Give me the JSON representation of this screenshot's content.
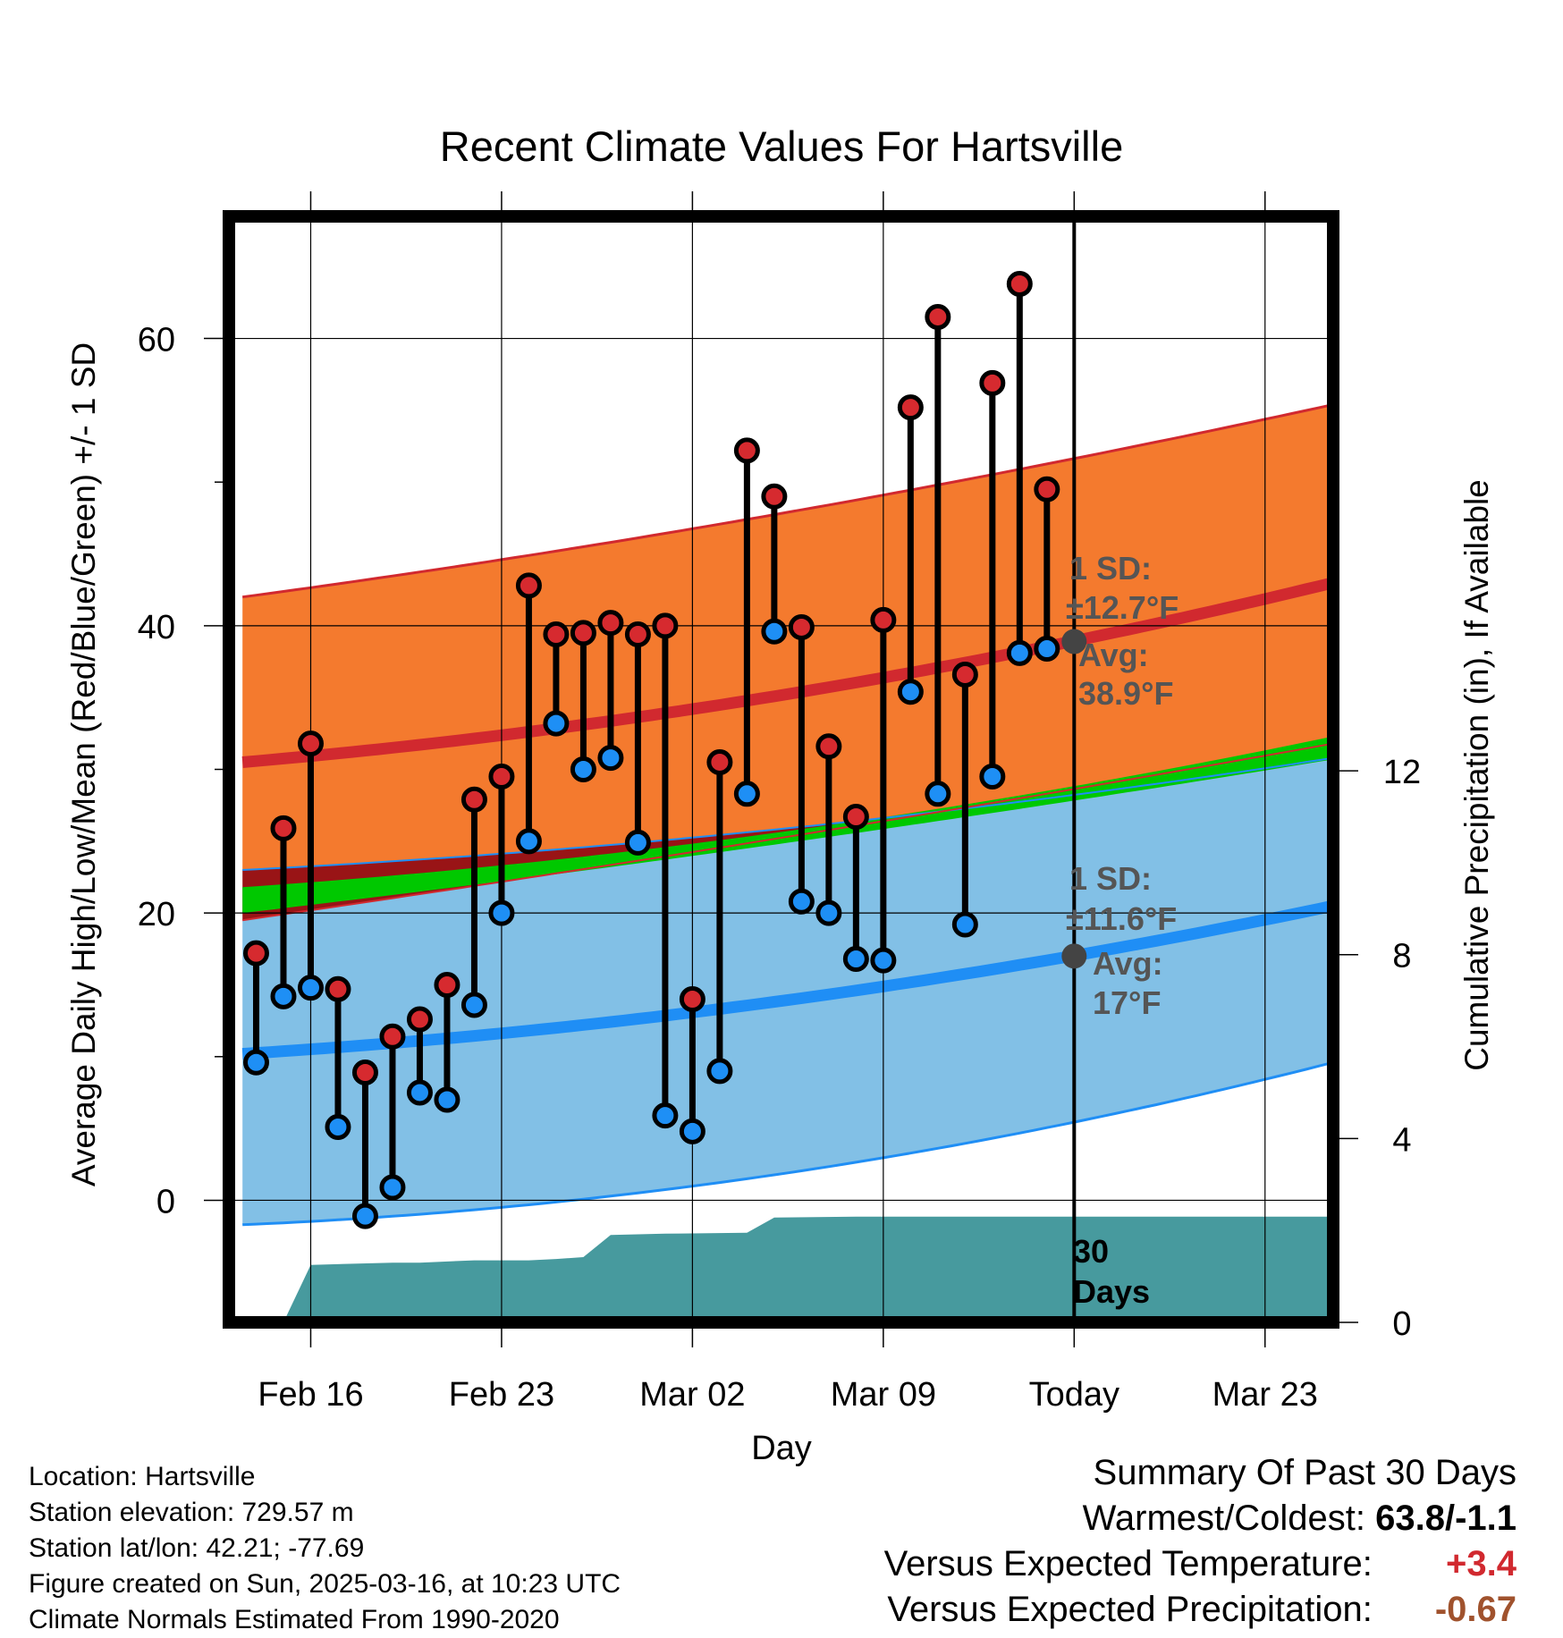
{
  "chart_data": {
    "type": "line",
    "title": "Recent Climate Values For Hartsville",
    "xlabel": "Day",
    "ylabel_left": "Average Daily High/Low/Mean (Red/Blue/Green) +/- 1 SD",
    "ylabel_right": "Cumulative Precipitation (in), If Available",
    "x_ticks": [
      {
        "day": 2,
        "label": "Feb 16"
      },
      {
        "day": 9,
        "label": "Feb 23"
      },
      {
        "day": 16,
        "label": "Mar 02"
      },
      {
        "day": 23,
        "label": "Mar 09"
      },
      {
        "day": 30,
        "label": "Today"
      },
      {
        "day": 37,
        "label": "Mar 23"
      }
    ],
    "xlim": [
      -1,
      39.5
    ],
    "ylim": [
      -8.5,
      68.5
    ],
    "y_ticks": [
      0,
      20,
      40,
      60
    ],
    "y_minor_ticks": [
      10,
      30,
      50
    ],
    "y2_ticks": [
      0,
      4,
      8,
      12
    ],
    "y2_per_degree": 0.3125,
    "grid": true,
    "today_day": 30,
    "observed": {
      "days": [
        0,
        1,
        2,
        3,
        4,
        5,
        6,
        7,
        8,
        9,
        10,
        11,
        12,
        13,
        14,
        15,
        16,
        17,
        18,
        19,
        20,
        21,
        22,
        23,
        24,
        25,
        26,
        27,
        28,
        29
      ],
      "highs": [
        17.2,
        25.9,
        31.8,
        14.7,
        8.9,
        11.4,
        12.6,
        15.0,
        27.9,
        29.5,
        42.8,
        39.4,
        39.5,
        40.2,
        39.4,
        40.0,
        14.0,
        30.5,
        52.2,
        49.0,
        39.9,
        31.6,
        26.7,
        40.4,
        55.2,
        61.5,
        36.6,
        56.9,
        63.8,
        49.5
      ],
      "lows": [
        9.6,
        14.2,
        14.8,
        5.1,
        -1.1,
        0.9,
        7.5,
        7.0,
        13.6,
        20.0,
        25.0,
        33.2,
        30.0,
        30.8,
        24.9,
        5.9,
        4.8,
        9.0,
        28.3,
        39.6,
        20.8,
        20.0,
        16.8,
        16.7,
        35.4,
        28.3,
        19.2,
        29.5,
        38.1,
        38.4
      ]
    },
    "normals": {
      "days": [
        -0.5,
        29.9,
        39.5
      ],
      "high_mean": [
        30.5,
        38.9,
        43.0
      ],
      "high_sd_upper": [
        42.0,
        51.6,
        55.4
      ],
      "high_sd_lower": [
        23.0,
        28.2,
        30.8
      ],
      "low_mean": [
        10.2,
        17.0,
        20.5
      ],
      "low_sd_upper": [
        19.5,
        28.6,
        31.8
      ],
      "low_sd_lower": [
        -1.7,
        5.4,
        9.6
      ],
      "mean_lower": [
        20.0,
        27.8,
        30.7
      ],
      "mean_upper": [
        21.8,
        28.8,
        32.3
      ]
    },
    "precipitation_cumulative": {
      "days": [
        -0.5,
        1.0,
        2.0,
        5.0,
        6.0,
        8.0,
        10.0,
        11.0,
        12.0,
        13.0,
        15.0,
        18.0,
        19.0,
        22.0,
        26.0,
        39.5
      ],
      "values": [
        0,
        0,
        1.25,
        1.3,
        1.3,
        1.35,
        1.35,
        1.38,
        1.42,
        1.9,
        1.93,
        1.95,
        2.28,
        2.3,
        2.3,
        2.3
      ]
    },
    "annotations": {
      "high_sd_line1": "1 SD:",
      "high_sd_line2": "±12.7°F",
      "high_avg_line1": "Avg:",
      "high_avg_line2": "38.9°F",
      "low_sd_line1": "1 SD:",
      "low_sd_line2": "±11.6°F",
      "low_avg_line1": "Avg:",
      "low_avg_line2": "17°F",
      "days_line1": "30",
      "days_line2": "Days"
    },
    "colors": {
      "high_band": "#f47a2e",
      "high_line": "#d1292f",
      "low_band": "#82c0e6",
      "low_line": "#1f8ef5",
      "mean_line": "#00c800",
      "overlap": "#991416",
      "precip": "#479a9e",
      "high_marker": "#d62a2f",
      "low_marker": "#1e8ff5",
      "annotation": "#555555"
    }
  },
  "info": {
    "location": "Location: Hartsville",
    "elevation": "Station elevation: 729.57 m",
    "latlon": "Station lat/lon: 42.21; -77.69",
    "created": "Figure created on Sun, 2025-03-16, at 10:23 UTC",
    "normals": "Climate Normals Estimated From 1990-2020"
  },
  "summary": {
    "title": "Summary Of Past 30 Days",
    "warm_cold_label": "Warmest/Coldest:",
    "warm_cold_value": "63.8/-1.1",
    "temp_label": "Versus Expected Temperature:",
    "temp_value": "+3.4",
    "temp_color": "#d1292f",
    "precip_label": "Versus Expected Precipitation:",
    "precip_value": "-0.67",
    "precip_color": "#a0522d"
  }
}
